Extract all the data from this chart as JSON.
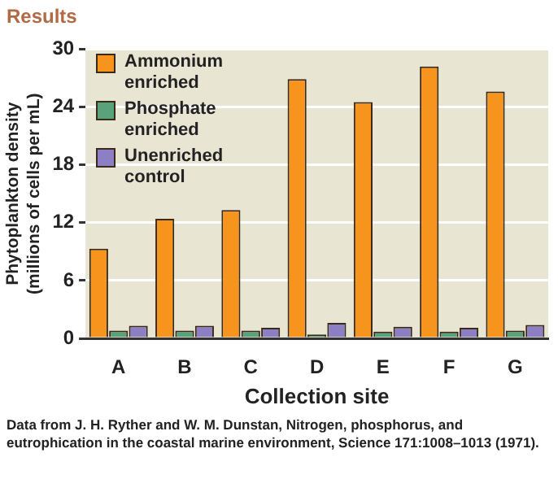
{
  "chart_data": {
    "type": "bar",
    "title": "Results",
    "xlabel": "Collection site",
    "ylabel": "Phytoplankton density (millions of cells per mL)",
    "categories": [
      "A",
      "B",
      "C",
      "D",
      "E",
      "F",
      "G"
    ],
    "series": [
      {
        "name": "Ammonium enriched",
        "color": "#f7941d",
        "values": [
          9.3,
          12.4,
          13.3,
          26.9,
          24.5,
          28.2,
          25.6
        ]
      },
      {
        "name": "Phosphate enriched",
        "color": "#5aa27c",
        "values": [
          0.8,
          0.8,
          0.8,
          0.4,
          0.7,
          0.7,
          0.8
        ]
      },
      {
        "name": "Unenriched control",
        "color": "#8c7fc4",
        "values": [
          1.3,
          1.3,
          1.1,
          1.6,
          1.2,
          1.1,
          1.4
        ]
      }
    ],
    "ylim": [
      0,
      30
    ],
    "yticks": [
      0,
      6,
      12,
      18,
      24,
      30
    ],
    "grid": "y",
    "legend": "top left",
    "annotations": [
      "Data from J. H. Ryther and W. M. Dunstan, Nitrogen, phosphorus, and eutrophication in the coastal marine environment, Science 171:1008–1013 (1971)."
    ]
  }
}
